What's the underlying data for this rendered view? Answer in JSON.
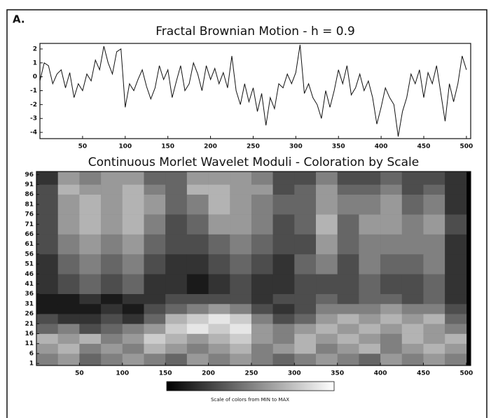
{
  "panel_label": "A.",
  "chart_data": [
    {
      "type": "line",
      "title": "Fractal Brownian Motion - h = 0.9",
      "color": "#111111",
      "x": [
        0,
        5,
        10,
        15,
        20,
        25,
        30,
        35,
        40,
        45,
        50,
        55,
        60,
        65,
        70,
        75,
        80,
        85,
        90,
        95,
        100,
        105,
        110,
        115,
        120,
        125,
        130,
        135,
        140,
        145,
        150,
        155,
        160,
        165,
        170,
        175,
        180,
        185,
        190,
        195,
        200,
        205,
        210,
        215,
        220,
        225,
        230,
        235,
        240,
        245,
        250,
        255,
        260,
        265,
        270,
        275,
        280,
        285,
        290,
        295,
        300,
        305,
        310,
        315,
        320,
        325,
        330,
        335,
        340,
        345,
        350,
        355,
        360,
        365,
        370,
        375,
        380,
        385,
        390,
        395,
        400,
        405,
        410,
        415,
        420,
        425,
        430,
        435,
        440,
        445,
        450,
        455,
        460,
        465,
        470,
        475,
        480,
        485,
        490,
        495,
        500
      ],
      "values": [
        -0.3,
        1,
        0.8,
        -0.5,
        0.2,
        0.5,
        -0.8,
        0.3,
        -1.5,
        -0.5,
        -1.0,
        0.2,
        -0.3,
        1.2,
        0.5,
        2.2,
        1.0,
        0.2,
        1.8,
        2.0,
        -2.2,
        -0.5,
        -1.0,
        -0.2,
        0.5,
        -0.7,
        -1.6,
        -0.8,
        0.8,
        -0.2,
        0.5,
        -1.5,
        -0.3,
        0.8,
        -1.0,
        -0.5,
        1.0,
        0.2,
        -1.0,
        0.8,
        -0.2,
        0.6,
        -0.5,
        0.3,
        -0.8,
        1.5,
        -1.0,
        -2.0,
        -0.5,
        -1.8,
        -0.8,
        -2.5,
        -1.2,
        -3.5,
        -1.5,
        -2.3,
        -0.5,
        -0.8,
        0.2,
        -0.5,
        0.3,
        2.3,
        -1.2,
        -0.5,
        -1.5,
        -2.0,
        -3.0,
        -1.0,
        -2.2,
        -1.0,
        0.5,
        -0.5,
        0.8,
        -1.3,
        -0.8,
        0.2,
        -1.0,
        -0.3,
        -1.5,
        -3.4,
        -2.2,
        -0.8,
        -1.5,
        -2.0,
        -4.3,
        -2.5,
        -1.5,
        0.2,
        -0.5,
        0.5,
        -1.5,
        0.3,
        -0.5,
        0.8,
        -1.2,
        -3.2,
        -0.5,
        -1.8,
        -0.5,
        1.5,
        0.5
      ],
      "xlim": [
        0,
        505
      ],
      "ylim": [
        -4.45,
        2.4
      ],
      "xticks": [
        50,
        100,
        150,
        200,
        250,
        300,
        350,
        400,
        450,
        500
      ],
      "yticks": [
        2,
        1,
        0,
        -1,
        -2,
        -3,
        -4
      ]
    },
    {
      "type": "heatmap",
      "title": "Continuous Morlet Wavelet Moduli - Coloration by Scale",
      "xbins": [
        0,
        25,
        50,
        75,
        100,
        125,
        150,
        175,
        200,
        225,
        250,
        275,
        300,
        325,
        350,
        375,
        400,
        425,
        450,
        475,
        500
      ],
      "ybins": [
        0,
        6,
        11,
        16,
        21,
        26,
        31,
        36,
        46,
        56,
        66,
        76,
        86,
        91,
        97.5
      ],
      "values": [
        [
          0.5,
          0.6,
          0.4,
          0.5,
          0.6,
          0.5,
          0.4,
          0.6,
          0.5,
          0.6,
          0.5,
          0.4,
          0.5,
          0.6,
          0.5,
          0.4,
          0.6,
          0.5,
          0.6,
          0.5
        ],
        [
          0.6,
          0.7,
          0.5,
          0.6,
          0.5,
          0.7,
          0.6,
          0.5,
          0.6,
          0.7,
          0.5,
          0.6,
          0.7,
          0.5,
          0.6,
          0.7,
          0.5,
          0.6,
          0.7,
          0.6
        ],
        [
          0.7,
          0.6,
          0.7,
          0.5,
          0.6,
          0.8,
          0.7,
          0.6,
          0.7,
          0.8,
          0.6,
          0.5,
          0.7,
          0.6,
          0.7,
          0.6,
          0.5,
          0.7,
          0.6,
          0.7
        ],
        [
          0.4,
          0.5,
          0.3,
          0.4,
          0.5,
          0.6,
          0.8,
          0.9,
          0.8,
          0.9,
          0.6,
          0.5,
          0.6,
          0.7,
          0.6,
          0.7,
          0.6,
          0.7,
          0.6,
          0.5
        ],
        [
          0.3,
          0.2,
          0.2,
          0.3,
          0.2,
          0.4,
          0.7,
          0.8,
          0.9,
          0.8,
          0.5,
          0.3,
          0.4,
          0.6,
          0.7,
          0.6,
          0.7,
          0.6,
          0.7,
          0.4
        ],
        [
          0.1,
          0.1,
          0.1,
          0.2,
          0.1,
          0.3,
          0.4,
          0.5,
          0.6,
          0.5,
          0.3,
          0.2,
          0.3,
          0.5,
          0.5,
          0.5,
          0.6,
          0.5,
          0.5,
          0.3
        ],
        [
          0.1,
          0.1,
          0.2,
          0.1,
          0.2,
          0.2,
          0.3,
          0.3,
          0.3,
          0.3,
          0.2,
          0.3,
          0.3,
          0.4,
          0.3,
          0.4,
          0.4,
          0.3,
          0.4,
          0.2
        ],
        [
          0.2,
          0.3,
          0.4,
          0.3,
          0.4,
          0.2,
          0.2,
          0.1,
          0.2,
          0.3,
          0.2,
          0.2,
          0.3,
          0.3,
          0.3,
          0.4,
          0.3,
          0.3,
          0.4,
          0.2
        ],
        [
          0.2,
          0.4,
          0.5,
          0.4,
          0.5,
          0.3,
          0.2,
          0.2,
          0.3,
          0.4,
          0.3,
          0.2,
          0.4,
          0.5,
          0.3,
          0.5,
          0.4,
          0.4,
          0.5,
          0.2
        ],
        [
          0.3,
          0.5,
          0.6,
          0.5,
          0.6,
          0.4,
          0.3,
          0.3,
          0.4,
          0.5,
          0.4,
          0.3,
          0.3,
          0.6,
          0.4,
          0.5,
          0.5,
          0.5,
          0.5,
          0.2
        ],
        [
          0.3,
          0.6,
          0.7,
          0.6,
          0.7,
          0.5,
          0.3,
          0.4,
          0.6,
          0.6,
          0.5,
          0.3,
          0.4,
          0.7,
          0.4,
          0.6,
          0.6,
          0.5,
          0.6,
          0.3
        ],
        [
          0.3,
          0.6,
          0.7,
          0.6,
          0.7,
          0.6,
          0.4,
          0.5,
          0.7,
          0.6,
          0.5,
          0.4,
          0.4,
          0.6,
          0.5,
          0.5,
          0.6,
          0.4,
          0.5,
          0.2
        ],
        [
          0.3,
          0.7,
          0.6,
          0.6,
          0.7,
          0.5,
          0.4,
          0.7,
          0.7,
          0.6,
          0.6,
          0.3,
          0.4,
          0.6,
          0.4,
          0.4,
          0.5,
          0.3,
          0.4,
          0.2
        ],
        [
          0.2,
          0.6,
          0.5,
          0.6,
          0.6,
          0.4,
          0.4,
          0.6,
          0.6,
          0.6,
          0.5,
          0.3,
          0.3,
          0.5,
          0.3,
          0.3,
          0.4,
          0.3,
          0.3,
          0.2
        ]
      ],
      "colorscale": [
        "#000000",
        "#ffffff"
      ],
      "zlim": [
        0,
        1
      ],
      "colorbar_label": "Scale of colors from MIN to MAX",
      "xlim": [
        0,
        505
      ],
      "ylim": [
        0,
        97.5
      ],
      "xticks": [
        50,
        100,
        150,
        200,
        250,
        300,
        350,
        400,
        450,
        500
      ],
      "yticks": [
        96,
        91,
        86,
        81,
        76,
        71,
        66,
        61,
        56,
        51,
        46,
        41,
        36,
        31,
        26,
        21,
        16,
        11,
        6,
        1
      ]
    }
  ]
}
